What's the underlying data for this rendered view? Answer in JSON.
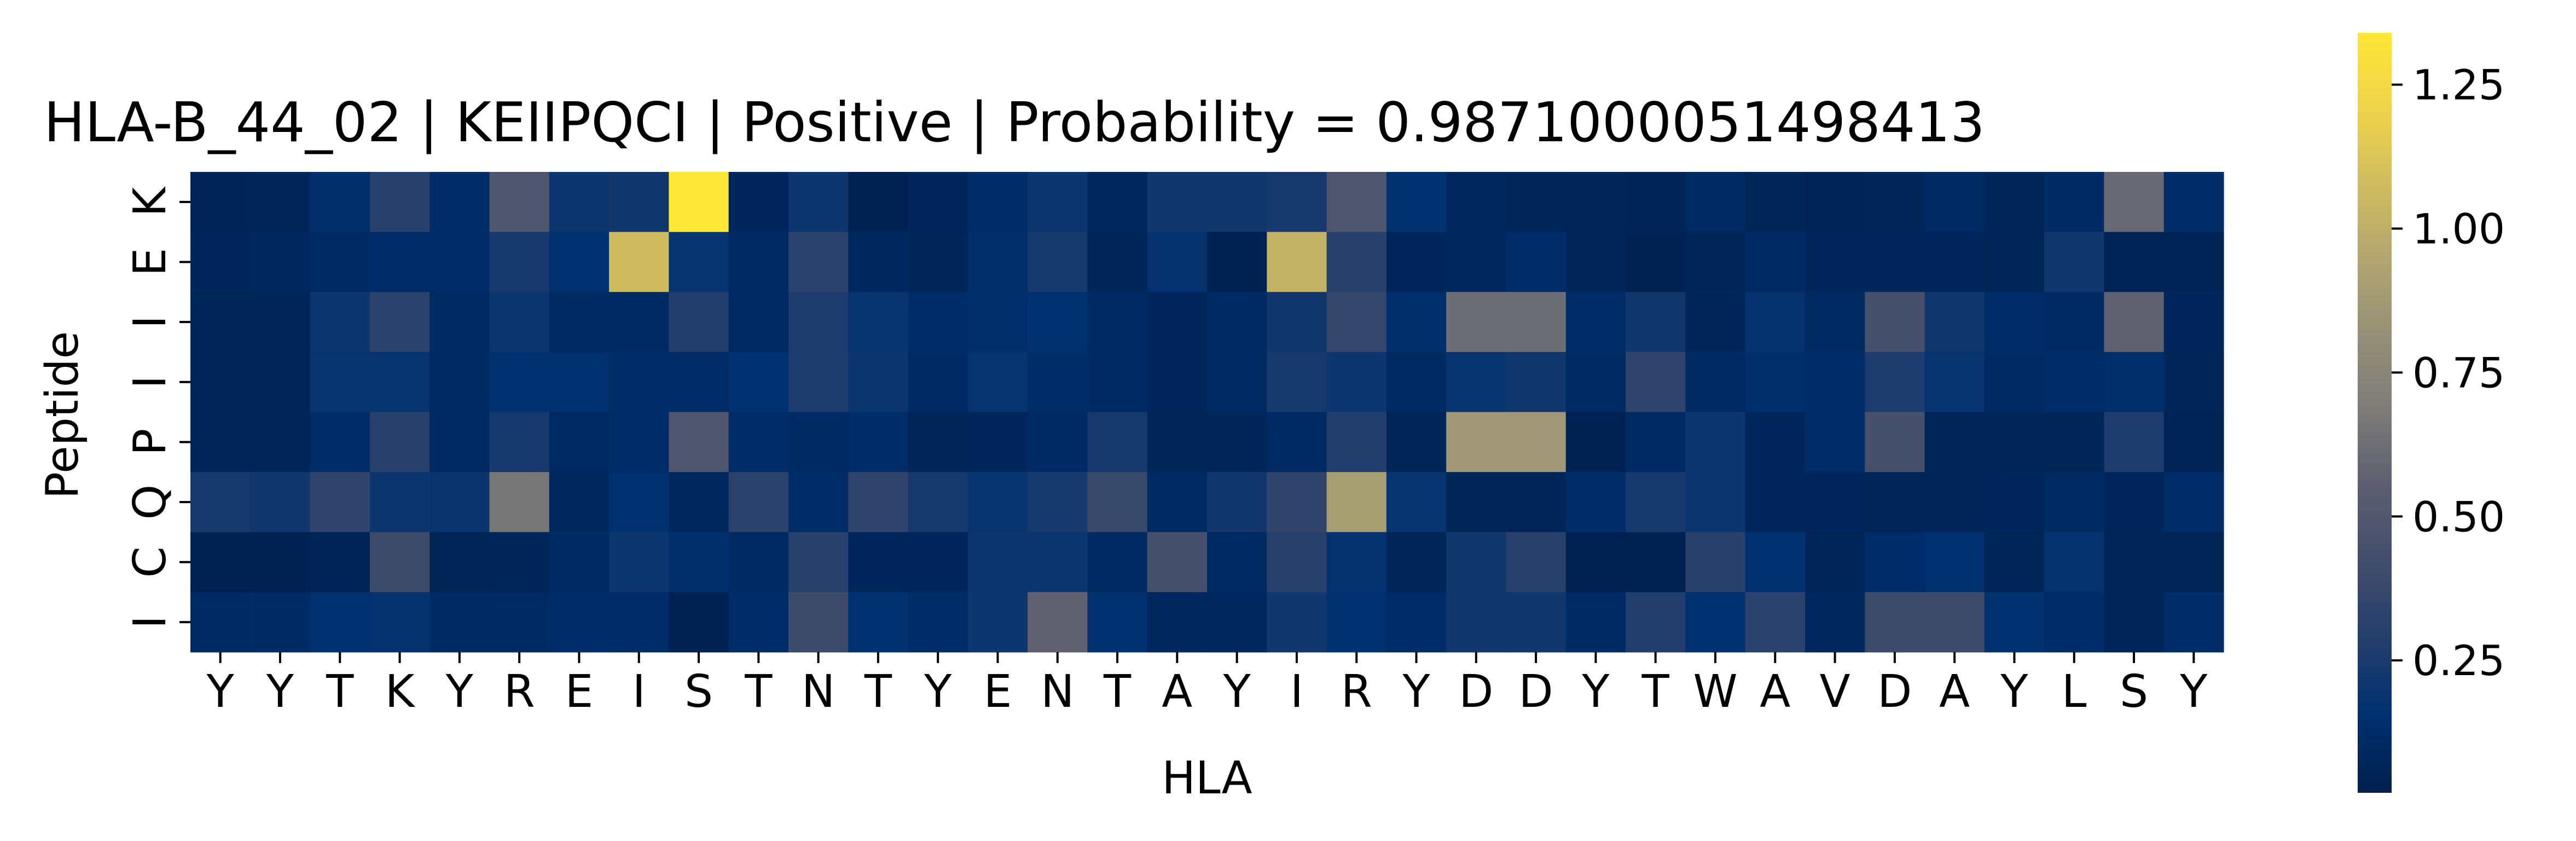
{
  "chart_data": {
    "type": "heatmap",
    "title": "HLA-B_44_02 | KEIIPQCI | Positive | Probability = 0.9871000051498413",
    "xlabel": "HLA",
    "ylabel": "Peptide",
    "x_categories": [
      "Y",
      "Y",
      "T",
      "K",
      "Y",
      "R",
      "E",
      "I",
      "S",
      "T",
      "N",
      "T",
      "Y",
      "E",
      "N",
      "T",
      "A",
      "Y",
      "I",
      "R",
      "Y",
      "D",
      "D",
      "Y",
      "T",
      "W",
      "A",
      "V",
      "D",
      "A",
      "Y",
      "L",
      "S",
      "Y"
    ],
    "y_categories": [
      "K",
      "E",
      "I",
      "I",
      "P",
      "Q",
      "C",
      "I"
    ],
    "colormap": "cividis",
    "vmin": 0.02,
    "vmax": 1.34,
    "colorbar_ticks": [
      {
        "value": 0.25,
        "label": "0.25"
      },
      {
        "value": 0.5,
        "label": "0.50"
      },
      {
        "value": 0.75,
        "label": "0.75"
      },
      {
        "value": 1.0,
        "label": "1.00"
      },
      {
        "value": 1.25,
        "label": "1.25"
      }
    ],
    "values": [
      [
        0.05,
        0.06,
        0.14,
        0.3,
        0.12,
        0.48,
        0.2,
        0.22,
        1.34,
        0.08,
        0.2,
        0.04,
        0.08,
        0.13,
        0.2,
        0.09,
        0.22,
        0.22,
        0.24,
        0.48,
        0.16,
        0.09,
        0.07,
        0.06,
        0.05,
        0.1,
        0.06,
        0.05,
        0.06,
        0.1,
        0.07,
        0.11,
        0.6,
        0.12
      ],
      [
        0.08,
        0.09,
        0.1,
        0.13,
        0.12,
        0.24,
        0.16,
        1.07,
        0.18,
        0.1,
        0.32,
        0.09,
        0.07,
        0.14,
        0.24,
        0.06,
        0.17,
        0.04,
        1.02,
        0.3,
        0.08,
        0.09,
        0.13,
        0.07,
        0.04,
        0.06,
        0.11,
        0.08,
        0.08,
        0.08,
        0.06,
        0.22,
        0.05,
        0.05
      ],
      [
        0.06,
        0.06,
        0.2,
        0.32,
        0.1,
        0.2,
        0.1,
        0.1,
        0.28,
        0.1,
        0.26,
        0.18,
        0.12,
        0.14,
        0.16,
        0.1,
        0.08,
        0.1,
        0.22,
        0.36,
        0.14,
        0.62,
        0.62,
        0.12,
        0.22,
        0.07,
        0.17,
        0.1,
        0.44,
        0.22,
        0.12,
        0.11,
        0.56,
        0.08
      ],
      [
        0.06,
        0.06,
        0.18,
        0.18,
        0.1,
        0.16,
        0.15,
        0.12,
        0.12,
        0.16,
        0.26,
        0.2,
        0.11,
        0.18,
        0.12,
        0.1,
        0.08,
        0.1,
        0.24,
        0.2,
        0.1,
        0.18,
        0.22,
        0.1,
        0.34,
        0.1,
        0.14,
        0.12,
        0.26,
        0.18,
        0.1,
        0.12,
        0.14,
        0.07
      ],
      [
        0.06,
        0.06,
        0.12,
        0.3,
        0.1,
        0.24,
        0.1,
        0.12,
        0.48,
        0.12,
        0.11,
        0.12,
        0.06,
        0.08,
        0.11,
        0.24,
        0.07,
        0.07,
        0.1,
        0.28,
        0.06,
        0.86,
        0.86,
        0.04,
        0.1,
        0.2,
        0.08,
        0.13,
        0.44,
        0.06,
        0.06,
        0.06,
        0.26,
        0.05
      ],
      [
        0.24,
        0.22,
        0.34,
        0.2,
        0.19,
        0.66,
        0.09,
        0.15,
        0.09,
        0.32,
        0.12,
        0.34,
        0.24,
        0.18,
        0.24,
        0.38,
        0.1,
        0.22,
        0.34,
        0.9,
        0.18,
        0.06,
        0.06,
        0.12,
        0.24,
        0.2,
        0.08,
        0.08,
        0.06,
        0.07,
        0.08,
        0.1,
        0.08,
        0.12
      ],
      [
        0.04,
        0.04,
        0.05,
        0.4,
        0.06,
        0.07,
        0.1,
        0.2,
        0.14,
        0.1,
        0.3,
        0.08,
        0.08,
        0.2,
        0.2,
        0.1,
        0.44,
        0.1,
        0.3,
        0.17,
        0.07,
        0.22,
        0.3,
        0.04,
        0.04,
        0.3,
        0.16,
        0.06,
        0.13,
        0.16,
        0.06,
        0.17,
        0.07,
        0.06
      ],
      [
        0.1,
        0.11,
        0.16,
        0.17,
        0.1,
        0.1,
        0.13,
        0.12,
        0.04,
        0.12,
        0.4,
        0.16,
        0.12,
        0.2,
        0.56,
        0.16,
        0.09,
        0.09,
        0.22,
        0.16,
        0.12,
        0.22,
        0.22,
        0.11,
        0.28,
        0.16,
        0.32,
        0.09,
        0.4,
        0.4,
        0.16,
        0.12,
        0.07,
        0.12
      ]
    ]
  }
}
